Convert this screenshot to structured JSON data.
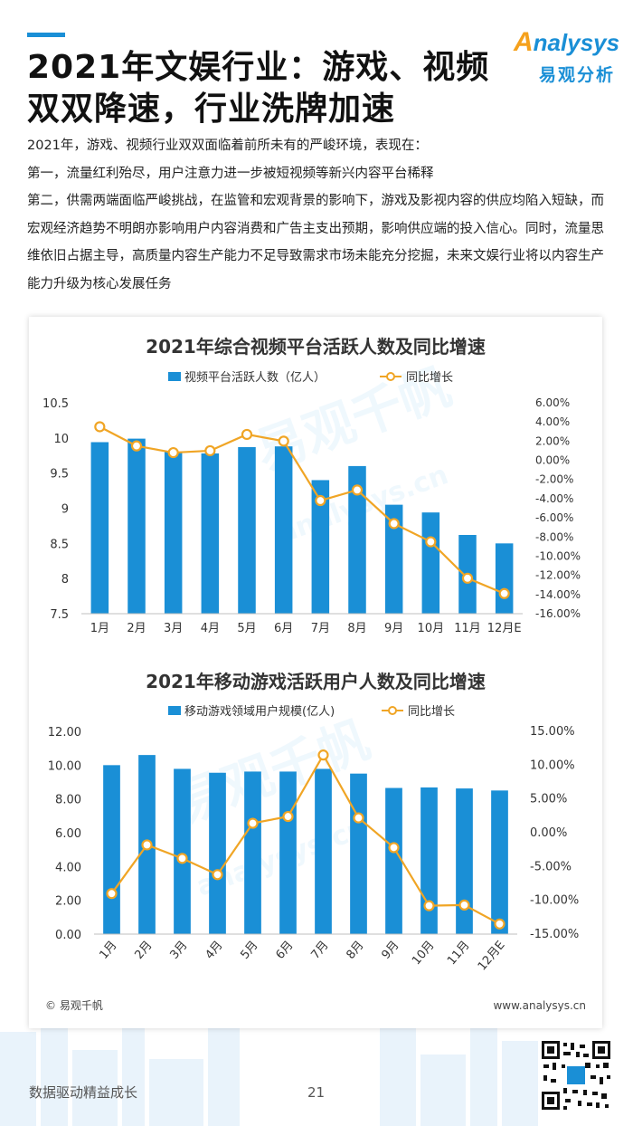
{
  "header": {
    "title_line1": "2021年文娱行业：游戏、视频",
    "title_line2": "双双降速，行业洗牌加速",
    "logo_en": "nalysys",
    "logo_en_a": "A",
    "logo_cn": "易观分析"
  },
  "body": {
    "p1": "2021年，游戏、视频行业双双面临着前所未有的严峻环境，表现在：",
    "p2": "第一，流量红利殆尽，用户注意力进一步被短视频等新兴内容平台稀释",
    "p3": "第二，供需两端面临严峻挑战，在监管和宏观背景的影响下，游戏及影视内容的供应均陷入短缺，而宏观经济趋势不明朗亦影响用户内容消费和广告主支出预期，影响供应端的投入信心。同时，流量思维依旧占据主导，高质量内容生产能力不足导致需求市场未能充分挖掘，未来文娱行业将以内容生产能力升级为核心发展任务"
  },
  "card": {
    "source": "© 易观千帆",
    "website": "www.analysys.cn"
  },
  "footer": {
    "slogan": "数据驱动精益成长",
    "page_number": "21"
  },
  "colors": {
    "bar": "#1a8fd6",
    "line": "#f0a525",
    "accent": "#1a8fd6"
  },
  "chart_data": [
    {
      "type": "bar",
      "title": "2021年综合视频平台活跃人数及同比增速",
      "categories": [
        "1月",
        "2月",
        "3月",
        "4月",
        "5月",
        "6月",
        "7月",
        "8月",
        "9月",
        "10月",
        "11月",
        "12月E"
      ],
      "series": [
        {
          "name": "视频平台活跃人数（亿人）",
          "kind": "bar",
          "axis": "left",
          "values": [
            9.94,
            9.99,
            9.8,
            9.78,
            9.87,
            9.88,
            9.4,
            9.6,
            9.05,
            8.94,
            8.62,
            8.5
          ]
        },
        {
          "name": "同比增长",
          "kind": "line",
          "axis": "right",
          "values": [
            3.5,
            1.5,
            0.8,
            1.0,
            2.7,
            2.0,
            -4.2,
            -3.1,
            -6.6,
            -8.5,
            -12.3,
            -13.9
          ]
        }
      ],
      "left_axis": {
        "min": 7.5,
        "max": 10.5,
        "ticks": [
          "10.5",
          "10",
          "9.5",
          "9",
          "8.5",
          "8",
          "7.5"
        ]
      },
      "right_axis": {
        "min": -16,
        "max": 6,
        "ticks": [
          "6.00%",
          "4.00%",
          "2.00%",
          "0.00%",
          "-2.00%",
          "-4.00%",
          "-6.00%",
          "-8.00%",
          "-10.00%",
          "-12.00%",
          "-14.00%",
          "-16.00%"
        ]
      },
      "legend_position": "top",
      "grid": false
    },
    {
      "type": "bar",
      "title": "2021年移动游戏活跃用户人数及同比增速",
      "categories": [
        "1月",
        "2月",
        "3月",
        "4月",
        "5月",
        "6月",
        "7月",
        "8月",
        "9月",
        "10月",
        "11月",
        "12月E"
      ],
      "series": [
        {
          "name": "移动游戏领域用户规模(亿人)",
          "kind": "bar",
          "axis": "left",
          "values": [
            10.0,
            10.6,
            9.78,
            9.55,
            9.62,
            9.62,
            9.78,
            9.5,
            8.65,
            8.68,
            8.62,
            8.5
          ]
        },
        {
          "name": "同比增长",
          "kind": "line",
          "axis": "right",
          "values": [
            -9.0,
            -1.8,
            -3.8,
            -6.2,
            1.4,
            2.4,
            11.5,
            2.2,
            -2.2,
            -10.8,
            -10.7,
            -13.5
          ]
        }
      ],
      "left_axis": {
        "min": 0,
        "max": 12,
        "ticks": [
          "12.00",
          "10.00",
          "8.00",
          "6.00",
          "4.00",
          "2.00",
          "0.00"
        ]
      },
      "right_axis": {
        "min": -15,
        "max": 15,
        "ticks": [
          "15.00%",
          "10.00%",
          "5.00%",
          "0.00%",
          "-5.00%",
          "-10.00%",
          "-15.00%"
        ]
      },
      "legend_position": "top",
      "grid": false
    }
  ]
}
